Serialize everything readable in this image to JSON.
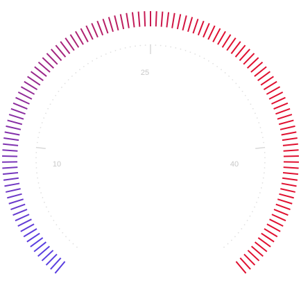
{
  "gauge": {
    "scale_min": 0,
    "scale_max": 50,
    "labels": [
      "10",
      "25",
      "40"
    ],
    "label_values": [
      10,
      25,
      40
    ],
    "colors": {
      "low": "#5a3fe0",
      "high": "#e01030",
      "scale": "#d8d8d8",
      "dots": "#e0e0e0",
      "label": "#c8c8c8"
    },
    "tick_count": 121,
    "filled_fraction": 1.0
  }
}
